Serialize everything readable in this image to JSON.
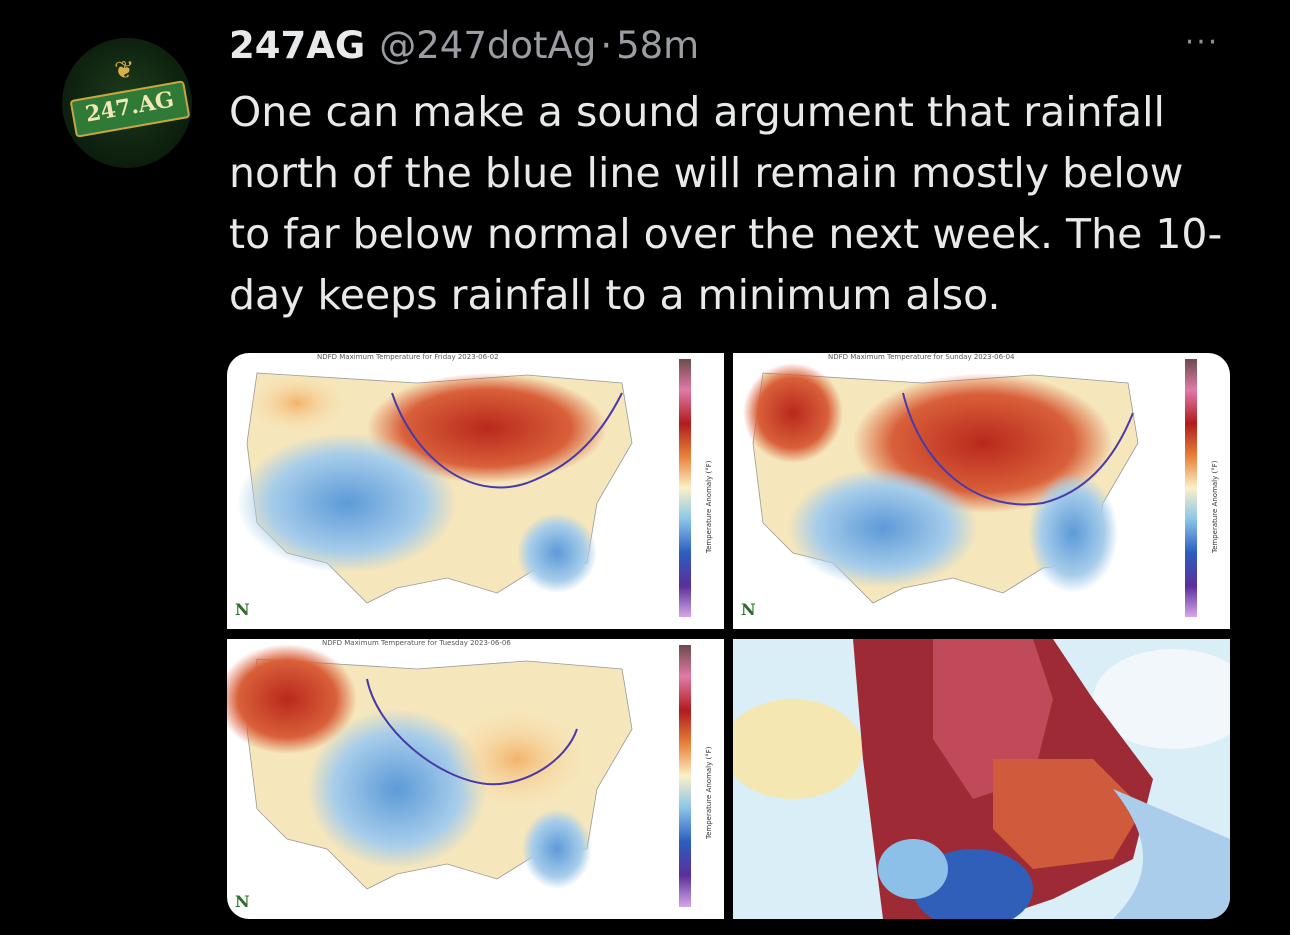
{
  "tweet": {
    "author_name": "247AG",
    "handle": "@247dotAg",
    "separator": "·",
    "time": "58m",
    "more_label": "···",
    "avatar_text": "247.AG",
    "text": "One can make a sound argument that rainfall north of the blue line will remain mostly below to far below normal over the next week.  The 10-day keeps rainfall to a minimum also."
  },
  "media": {
    "panels": [
      {
        "title": "NDFD Maximum Temperature for Friday 2023-06-02",
        "colorbar_label": "Temperature Anomaly (°F)",
        "logo": "N"
      },
      {
        "title": "NDFD Maximum Temperature for Sunday 2023-06-04",
        "colorbar_label": "Temperature Anomaly (°F)",
        "logo": "N"
      },
      {
        "title": "NDFD Maximum Temperature for Tuesday 2023-06-06",
        "colorbar_label": "Temperature Anomaly (°F)",
        "logo": "N"
      },
      {
        "title": "",
        "colorbar_label": "",
        "logo": ""
      }
    ]
  },
  "colors": {
    "background": "#000000",
    "text_primary": "#e7e9ea",
    "text_secondary": "#9a9ea3",
    "warm_anomaly": "#c0392b",
    "cool_anomaly": "#4a90d9",
    "blue_line": "#4a3aa8"
  }
}
